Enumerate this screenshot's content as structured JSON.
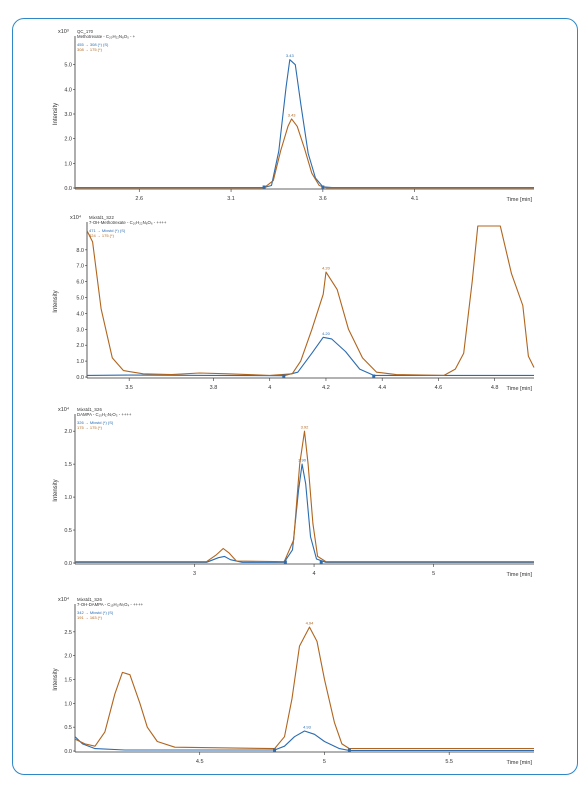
{
  "chart_data": [
    {
      "type": "line",
      "sample": "QC_170",
      "compound": "Methotrexate - C₂₀H₂₂N₈O₅ - +",
      "legend": [
        "455 → 308 (*) (S)",
        "308 → 175 (*)"
      ],
      "y_multiplier": "x10³",
      "ylabel": "Intensity",
      "xlabel": "Time [min]",
      "xlim": [
        2.25,
        4.75
      ],
      "ylim": [
        0,
        6
      ],
      "xticks": [
        2.6,
        3.1,
        3.6,
        4.1
      ],
      "yticks": [
        "0.0",
        "1.0",
        "2.0",
        "3.0",
        "4.0",
        "5.0"
      ],
      "series": [
        {
          "name": "455 → 308 (*) (S)",
          "color": "#2b6cb0",
          "points": [
            [
              2.25,
              0.02
            ],
            [
              3.28,
              0.02
            ],
            [
              3.32,
              0.1
            ],
            [
              3.36,
              1.5
            ],
            [
              3.4,
              4.1
            ],
            [
              3.42,
              5.2
            ],
            [
              3.45,
              5.0
            ],
            [
              3.48,
              3.4
            ],
            [
              3.52,
              1.4
            ],
            [
              3.56,
              0.4
            ],
            [
              3.6,
              0.05
            ],
            [
              3.65,
              0.02
            ],
            [
              4.75,
              0.02
            ]
          ]
        },
        {
          "name": "308 → 175 (*)",
          "color": "#b0651e",
          "points": [
            [
              2.25,
              0.01
            ],
            [
              3.28,
              0.01
            ],
            [
              3.33,
              0.3
            ],
            [
              3.37,
              1.5
            ],
            [
              3.41,
              2.5
            ],
            [
              3.43,
              2.8
            ],
            [
              3.46,
              2.5
            ],
            [
              3.5,
              1.6
            ],
            [
              3.54,
              0.6
            ],
            [
              3.58,
              0.1
            ],
            [
              3.62,
              0.01
            ],
            [
              4.75,
              0.01
            ]
          ]
        }
      ],
      "annotations": [
        {
          "x": 3.42,
          "y": 5.2,
          "text": "3.43",
          "color": "#2b6cb0"
        },
        {
          "x": 3.43,
          "y": 2.8,
          "text": "3.43",
          "color": "#b0651e"
        }
      ],
      "integration_markers": [
        3.28,
        3.6
      ]
    },
    {
      "type": "line",
      "sample": "Mixstd1_S22",
      "compound": "7-OH-Methotrexate - C₂₀H₂₂N₈O₆ - ++++",
      "legend": [
        "471 → Mixstd (*) (S)",
        "324 → 175 (*)"
      ],
      "y_multiplier": "x10⁴",
      "ylabel": "Intensity",
      "xlabel": "Time [min]",
      "xlim": [
        3.35,
        4.94
      ],
      "ylim": [
        0,
        9.5
      ],
      "xticks": [
        3.5,
        3.8,
        4,
        4.2,
        4.4,
        4.6,
        4.8
      ],
      "yticks": [
        "0.0",
        "1.0",
        "2.0",
        "3.0",
        "4.0",
        "5.0",
        "6.0",
        "7.0",
        "8.0"
      ],
      "series": [
        {
          "name": "471 → Mixstd (*) (S)",
          "color": "#2b6cb0",
          "points": [
            [
              3.35,
              0.1
            ],
            [
              3.5,
              0.12
            ],
            [
              3.8,
              0.1
            ],
            [
              4.05,
              0.08
            ],
            [
              4.1,
              0.3
            ],
            [
              4.15,
              1.5
            ],
            [
              4.19,
              2.5
            ],
            [
              4.22,
              2.4
            ],
            [
              4.27,
              1.6
            ],
            [
              4.32,
              0.5
            ],
            [
              4.37,
              0.1
            ],
            [
              4.6,
              0.1
            ],
            [
              4.94,
              0.1
            ]
          ]
        },
        {
          "name": "324 → 175 (*)",
          "color": "#b0651e",
          "points": [
            [
              3.35,
              9.2
            ],
            [
              3.37,
              8.5
            ],
            [
              3.4,
              4.3
            ],
            [
              3.44,
              1.2
            ],
            [
              3.48,
              0.4
            ],
            [
              3.55,
              0.2
            ],
            [
              3.65,
              0.15
            ],
            [
              3.75,
              0.25
            ],
            [
              3.85,
              0.2
            ],
            [
              4.0,
              0.1
            ],
            [
              4.08,
              0.2
            ],
            [
              4.11,
              1.0
            ],
            [
              4.15,
              3.0
            ],
            [
              4.19,
              5.2
            ],
            [
              4.2,
              6.6
            ],
            [
              4.24,
              5.5
            ],
            [
              4.28,
              3.0
            ],
            [
              4.33,
              1.2
            ],
            [
              4.38,
              0.3
            ],
            [
              4.45,
              0.15
            ],
            [
              4.62,
              0.1
            ],
            [
              4.66,
              0.5
            ],
            [
              4.69,
              1.5
            ],
            [
              4.72,
              6.0
            ],
            [
              4.74,
              9.5
            ],
            [
              4.82,
              9.5
            ],
            [
              4.86,
              6.5
            ],
            [
              4.9,
              4.5
            ],
            [
              4.92,
              1.3
            ],
            [
              4.94,
              0.6
            ]
          ]
        }
      ],
      "annotations": [
        {
          "x": 4.2,
          "y": 2.5,
          "text": "4.20",
          "color": "#2b6cb0"
        },
        {
          "x": 4.2,
          "y": 6.6,
          "text": "4.20",
          "color": "#b0651e"
        }
      ],
      "integration_markers": [
        4.05,
        4.37
      ]
    },
    {
      "type": "line",
      "sample": "Mixstd1_S26",
      "compound": "DAMPA - C₁₅H₁₇N₇O₃ - ++++",
      "legend": [
        "326 → Mixstd (*) (S)",
        "175 → 175 (*)"
      ],
      "y_multiplier": "x10⁴",
      "ylabel": "Intensity",
      "xlabel": "Time [min]",
      "xlim": [
        2.0,
        5.84
      ],
      "ylim": [
        0,
        2.2
      ],
      "xticks": [
        3,
        4,
        5
      ],
      "yticks": [
        "0.0",
        "0.5",
        "1.0",
        "1.5",
        "2.0"
      ],
      "series": [
        {
          "name": "326 → Mixstd (*) (S)",
          "color": "#2b6cb0",
          "points": [
            [
              2.0,
              0.01
            ],
            [
              3.1,
              0.01
            ],
            [
              3.2,
              0.08
            ],
            [
              3.25,
              0.1
            ],
            [
              3.3,
              0.05
            ],
            [
              3.4,
              0.01
            ],
            [
              3.75,
              0.01
            ],
            [
              3.82,
              0.2
            ],
            [
              3.87,
              1.1
            ],
            [
              3.9,
              1.5
            ],
            [
              3.93,
              1.2
            ],
            [
              3.97,
              0.4
            ],
            [
              4.02,
              0.06
            ],
            [
              4.1,
              0.01
            ],
            [
              5.84,
              0.01
            ]
          ]
        },
        {
          "name": "175 → 175 (*)",
          "color": "#b0651e",
          "points": [
            [
              2.0,
              0.02
            ],
            [
              3.1,
              0.02
            ],
            [
              3.18,
              0.12
            ],
            [
              3.24,
              0.22
            ],
            [
              3.29,
              0.15
            ],
            [
              3.35,
              0.03
            ],
            [
              3.75,
              0.02
            ],
            [
              3.83,
              0.35
            ],
            [
              3.88,
              1.5
            ],
            [
              3.92,
              2.0
            ],
            [
              3.95,
              1.5
            ],
            [
              3.99,
              0.6
            ],
            [
              4.03,
              0.1
            ],
            [
              4.1,
              0.02
            ],
            [
              5.84,
              0.02
            ]
          ]
        }
      ],
      "annotations": [
        {
          "x": 3.9,
          "y": 1.5,
          "text": "3.90",
          "color": "#2b6cb0"
        },
        {
          "x": 3.92,
          "y": 2.0,
          "text": "3.92",
          "color": "#b0651e"
        }
      ],
      "integration_markers": [
        3.76,
        4.06
      ]
    },
    {
      "type": "line",
      "sample": "Mixstd1_S26",
      "compound": "7-OH-DAMPA - C₁₅H₁₇N₇O₄ - ++++",
      "legend": [
        "342 → Mixstd (*) (S)",
        "191 → 163 (*)"
      ],
      "y_multiplier": "x10⁴",
      "ylabel": "Intensity",
      "xlabel": "Time [min]",
      "xlim": [
        4.0,
        5.84
      ],
      "ylim": [
        0,
        3.0
      ],
      "xticks": [
        4.5,
        5,
        5.5
      ],
      "yticks": [
        "0.0",
        "0.5",
        "1.0",
        "1.5",
        "2.0",
        "2.5"
      ],
      "series": [
        {
          "name": "342 → Mixstd (*) (S)",
          "color": "#2b6cb0",
          "points": [
            [
              4.0,
              0.3
            ],
            [
              4.03,
              0.15
            ],
            [
              4.08,
              0.05
            ],
            [
              4.2,
              0.02
            ],
            [
              4.8,
              0.02
            ],
            [
              4.84,
              0.1
            ],
            [
              4.88,
              0.3
            ],
            [
              4.92,
              0.42
            ],
            [
              4.96,
              0.35
            ],
            [
              5.0,
              0.2
            ],
            [
              5.06,
              0.05
            ],
            [
              5.1,
              0.01
            ],
            [
              5.84,
              0.01
            ]
          ]
        },
        {
          "name": "191 → 163 (*)",
          "color": "#b0651e",
          "points": [
            [
              4.0,
              0.25
            ],
            [
              4.04,
              0.15
            ],
            [
              4.08,
              0.1
            ],
            [
              4.12,
              0.4
            ],
            [
              4.16,
              1.2
            ],
            [
              4.19,
              1.65
            ],
            [
              4.22,
              1.6
            ],
            [
              4.26,
              1.0
            ],
            [
              4.29,
              0.5
            ],
            [
              4.33,
              0.2
            ],
            [
              4.4,
              0.08
            ],
            [
              4.8,
              0.05
            ],
            [
              4.84,
              0.3
            ],
            [
              4.87,
              1.1
            ],
            [
              4.9,
              2.2
            ],
            [
              4.94,
              2.6
            ],
            [
              4.97,
              2.3
            ],
            [
              5.0,
              1.5
            ],
            [
              5.04,
              0.6
            ],
            [
              5.07,
              0.15
            ],
            [
              5.1,
              0.05
            ],
            [
              5.84,
              0.05
            ]
          ]
        }
      ],
      "annotations": [
        {
          "x": 4.93,
          "y": 0.42,
          "text": "4.93",
          "color": "#2b6cb0"
        },
        {
          "x": 4.94,
          "y": 2.6,
          "text": "4.94",
          "color": "#b0651e"
        }
      ],
      "integration_markers": [
        4.8,
        5.1
      ]
    }
  ]
}
